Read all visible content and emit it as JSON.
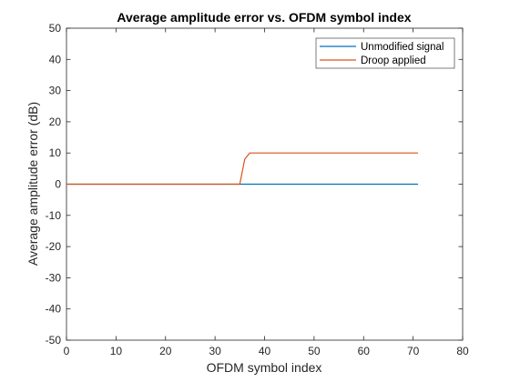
{
  "chart_data": {
    "type": "line",
    "title": "Average amplitude error vs. OFDM symbol index",
    "xlabel": "OFDM symbol index",
    "ylabel": "Average amplitude error (dB)",
    "xlim": [
      0,
      80
    ],
    "ylim": [
      -50,
      50
    ],
    "xticks": [
      0,
      10,
      20,
      30,
      40,
      50,
      60,
      70,
      80
    ],
    "yticks": [
      -50,
      -40,
      -30,
      -20,
      -10,
      0,
      10,
      20,
      30,
      40,
      50
    ],
    "grid": false,
    "legend_position": "top-right",
    "series": [
      {
        "name": "Unmodified signal",
        "color": "#0072BD",
        "x": [
          0,
          71
        ],
        "y": [
          0,
          0
        ]
      },
      {
        "name": "Droop applied",
        "color": "#D95319",
        "x": [
          0,
          35,
          36,
          37,
          71
        ],
        "y": [
          0,
          0,
          8,
          10,
          10
        ]
      }
    ]
  }
}
